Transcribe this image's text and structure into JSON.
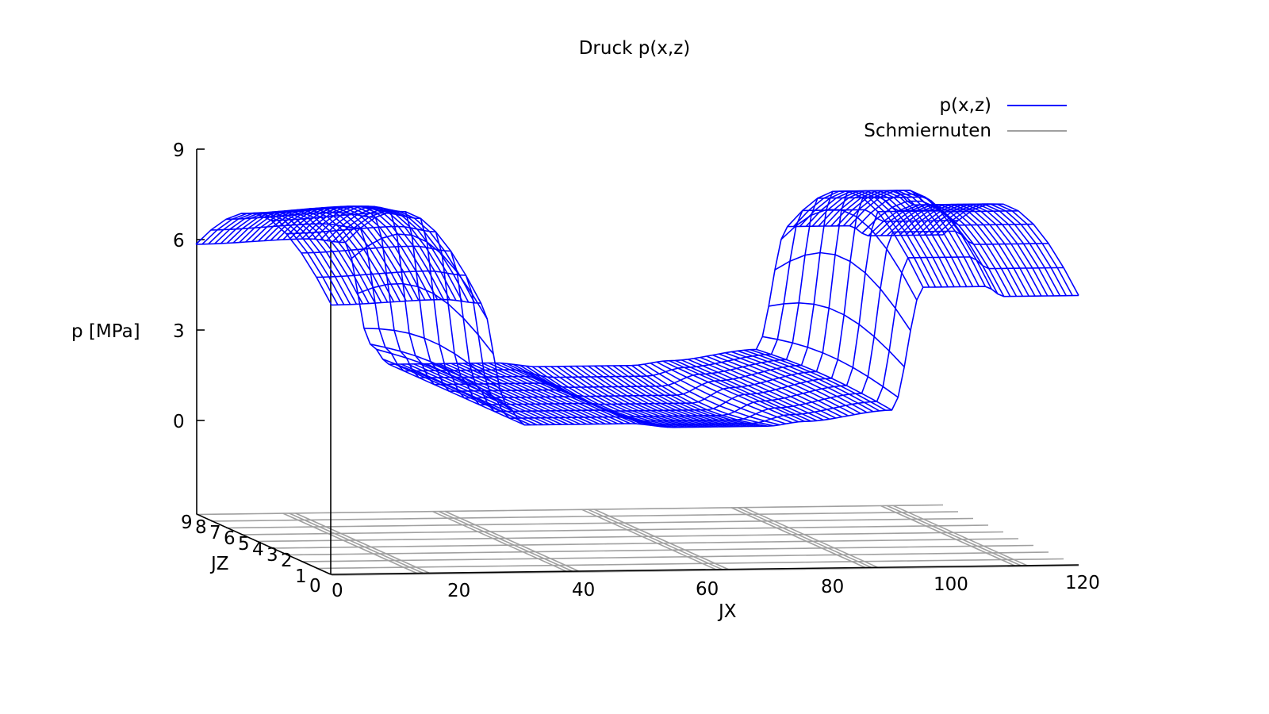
{
  "chart_data": {
    "type": "surface",
    "title": "Druck p(x,z)",
    "zlabel": "p [MPa]",
    "xlabel": "JX",
    "ylabel": "JZ",
    "z_ticks": [
      "9",
      "6",
      "3",
      "0"
    ],
    "x_ticks": [
      "0",
      "20",
      "40",
      "60",
      "80",
      "100",
      "120"
    ],
    "jz_ticks": [
      "9",
      "8",
      "7",
      "6",
      "5",
      "4",
      "3",
      "2",
      "1",
      "0"
    ],
    "xlim": [
      0,
      120
    ],
    "ylim": [
      0,
      9
    ],
    "zlim": [
      -3,
      9
    ],
    "legend": {
      "placement": "top-right",
      "entries": [
        {
          "name": "p(x,z)",
          "color": "#0000ff"
        },
        {
          "name": "Schmiernuten",
          "color": "#a0a0a0"
        }
      ]
    },
    "series": [
      {
        "name": "p(x,z)",
        "description_points": [
          {
            "jx": 0,
            "p": 6.0
          },
          {
            "jx": 22,
            "p": 5.0
          },
          {
            "jx": 30,
            "p": 0.0
          },
          {
            "jx": 60,
            "p": -0.5
          },
          {
            "jx": 80,
            "p": 0.2
          },
          {
            "jx": 100,
            "p": 6.5
          },
          {
            "jx": 120,
            "p": 6.0
          }
        ]
      },
      {
        "name": "Schmiernuten",
        "grooves_jx": [
          15,
          39,
          63,
          87,
          111
        ]
      }
    ],
    "colors": {
      "surface": "#0000ff",
      "grooves": "#a0a0a0",
      "axis": "#000000"
    }
  }
}
